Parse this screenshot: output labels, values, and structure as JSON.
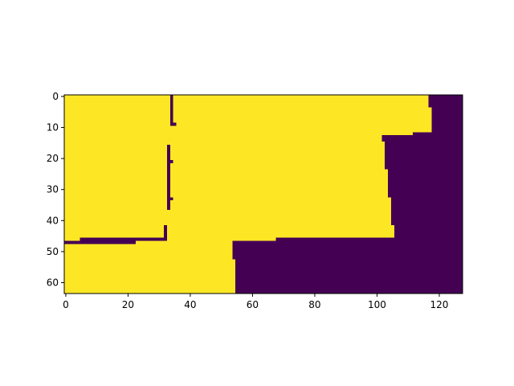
{
  "chart_data": {
    "type": "heatmap",
    "title": "",
    "xlabel": "",
    "ylabel": "",
    "grid": false,
    "xlim": [
      -0.5,
      127.5
    ],
    "ylim": [
      63.5,
      -0.5
    ],
    "x_ticks": [
      0,
      20,
      40,
      60,
      80,
      100,
      120
    ],
    "y_ticks": [
      0,
      10,
      20,
      30,
      40,
      50,
      60
    ],
    "x_tick_labels": [
      "0",
      "20",
      "40",
      "60",
      "80",
      "100",
      "120"
    ],
    "y_tick_labels": [
      "0",
      "10",
      "20",
      "30",
      "40",
      "50",
      "60"
    ],
    "colors": {
      "high": "#fde725",
      "low": "#440154"
    },
    "value_meaning": "1 = yellow (high), 0 = purple (low)",
    "rows": 64,
    "cols": 128,
    "low_regions": [
      {
        "x": [
          116.5,
          127.5
        ],
        "y": [
          -0.5,
          3.5
        ]
      },
      {
        "x": [
          117.5,
          127.5
        ],
        "y": [
          3.5,
          11.5
        ]
      },
      {
        "x": [
          111.5,
          127.5
        ],
        "y": [
          11.5,
          12.5
        ]
      },
      {
        "x": [
          101.5,
          127.5
        ],
        "y": [
          12.5,
          14.5
        ]
      },
      {
        "x": [
          102.5,
          127.5
        ],
        "y": [
          14.5,
          23.5
        ]
      },
      {
        "x": [
          103.5,
          127.5
        ],
        "y": [
          23.5,
          32.5
        ]
      },
      {
        "x": [
          104.5,
          127.5
        ],
        "y": [
          32.5,
          41.5
        ]
      },
      {
        "x": [
          105.5,
          127.5
        ],
        "y": [
          41.5,
          45.5
        ]
      },
      {
        "x": [
          67.5,
          127.5
        ],
        "y": [
          45.5,
          46.5
        ]
      },
      {
        "x": [
          53.5,
          127.5
        ],
        "y": [
          46.5,
          52.5
        ]
      },
      {
        "x": [
          54.5,
          127.5
        ],
        "y": [
          52.5,
          63.5
        ]
      },
      {
        "x": [
          33.5,
          34.5
        ],
        "y": [
          -0.5,
          9.5
        ]
      },
      {
        "x": [
          34.5,
          35.5
        ],
        "y": [
          8.5,
          9.5
        ]
      },
      {
        "x": [
          32.5,
          33.5
        ],
        "y": [
          15.5,
          36.5
        ]
      },
      {
        "x": [
          33.5,
          34.5
        ],
        "y": [
          20.5,
          21.5
        ]
      },
      {
        "x": [
          33.5,
          34.5
        ],
        "y": [
          32.5,
          33.5
        ]
      },
      {
        "x": [
          31.5,
          32.5
        ],
        "y": [
          41.5,
          45.5
        ]
      },
      {
        "x": [
          4.5,
          32.5
        ],
        "y": [
          45.5,
          46.5
        ]
      },
      {
        "x": [
          -0.5,
          22.5
        ],
        "y": [
          46.5,
          47.5
        ]
      }
    ]
  }
}
